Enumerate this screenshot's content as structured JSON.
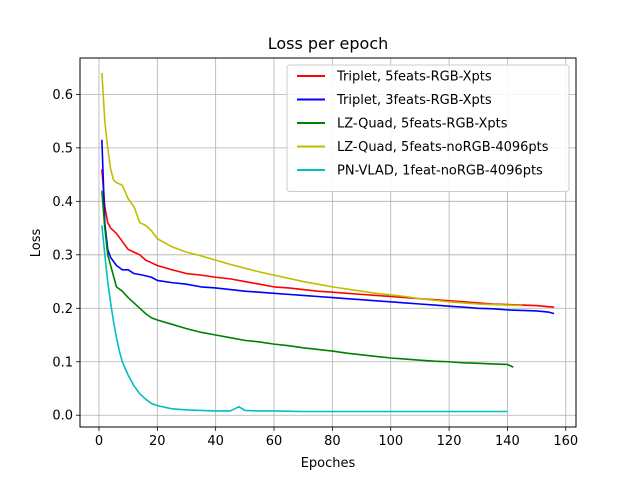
{
  "chart_data": {
    "type": "line",
    "title": "Loss per epoch",
    "xlabel": "Epoches",
    "ylabel": "Loss",
    "xlim": [
      -6.5,
      163.5
    ],
    "ylim": [
      -0.022,
      0.668
    ],
    "xticks": [
      0,
      20,
      40,
      60,
      80,
      100,
      120,
      140,
      160
    ],
    "yticks": [
      0.0,
      0.1,
      0.2,
      0.3,
      0.4,
      0.5,
      0.6
    ],
    "ytick_labels": [
      "0.0",
      "0.1",
      "0.2",
      "0.3",
      "0.4",
      "0.5",
      "0.6"
    ],
    "grid": true,
    "legend_position": "top-right",
    "series": [
      {
        "name": "Triplet, 5feats-RGB-Xpts",
        "color": "#ff0000",
        "points": [
          [
            1,
            0.46
          ],
          [
            2,
            0.39
          ],
          [
            3,
            0.36
          ],
          [
            4,
            0.35
          ],
          [
            6,
            0.34
          ],
          [
            8,
            0.325
          ],
          [
            10,
            0.31
          ],
          [
            12,
            0.305
          ],
          [
            14,
            0.3
          ],
          [
            16,
            0.29
          ],
          [
            18,
            0.285
          ],
          [
            20,
            0.28
          ],
          [
            25,
            0.272
          ],
          [
            30,
            0.265
          ],
          [
            35,
            0.262
          ],
          [
            40,
            0.258
          ],
          [
            45,
            0.255
          ],
          [
            50,
            0.25
          ],
          [
            55,
            0.245
          ],
          [
            60,
            0.24
          ],
          [
            65,
            0.238
          ],
          [
            70,
            0.235
          ],
          [
            75,
            0.232
          ],
          [
            80,
            0.23
          ],
          [
            85,
            0.228
          ],
          [
            90,
            0.226
          ],
          [
            95,
            0.224
          ],
          [
            100,
            0.222
          ],
          [
            105,
            0.22
          ],
          [
            110,
            0.218
          ],
          [
            115,
            0.216
          ],
          [
            120,
            0.214
          ],
          [
            125,
            0.212
          ],
          [
            130,
            0.21
          ],
          [
            135,
            0.208
          ],
          [
            140,
            0.207
          ],
          [
            145,
            0.206
          ],
          [
            150,
            0.205
          ],
          [
            154,
            0.203
          ],
          [
            156,
            0.202
          ]
        ]
      },
      {
        "name": "Triplet, 3feats-RGB-Xpts",
        "color": "#0000ff",
        "points": [
          [
            1,
            0.515
          ],
          [
            2,
            0.36
          ],
          [
            3,
            0.31
          ],
          [
            4,
            0.295
          ],
          [
            6,
            0.28
          ],
          [
            8,
            0.272
          ],
          [
            10,
            0.272
          ],
          [
            12,
            0.265
          ],
          [
            15,
            0.262
          ],
          [
            18,
            0.258
          ],
          [
            20,
            0.252
          ],
          [
            25,
            0.248
          ],
          [
            30,
            0.245
          ],
          [
            35,
            0.24
          ],
          [
            40,
            0.238
          ],
          [
            45,
            0.235
          ],
          [
            50,
            0.232
          ],
          [
            55,
            0.23
          ],
          [
            60,
            0.228
          ],
          [
            65,
            0.226
          ],
          [
            70,
            0.224
          ],
          [
            75,
            0.222
          ],
          [
            80,
            0.22
          ],
          [
            85,
            0.218
          ],
          [
            90,
            0.216
          ],
          [
            95,
            0.214
          ],
          [
            100,
            0.212
          ],
          [
            105,
            0.21
          ],
          [
            110,
            0.208
          ],
          [
            115,
            0.206
          ],
          [
            120,
            0.204
          ],
          [
            125,
            0.202
          ],
          [
            130,
            0.2
          ],
          [
            135,
            0.199
          ],
          [
            140,
            0.197
          ],
          [
            145,
            0.196
          ],
          [
            150,
            0.195
          ],
          [
            154,
            0.193
          ],
          [
            156,
            0.19
          ]
        ]
      },
      {
        "name": "LZ-Quad, 5feats-RGB-Xpts",
        "color": "#008000",
        "points": [
          [
            1,
            0.42
          ],
          [
            2,
            0.35
          ],
          [
            3,
            0.3
          ],
          [
            4,
            0.28
          ],
          [
            5,
            0.26
          ],
          [
            6,
            0.24
          ],
          [
            8,
            0.232
          ],
          [
            10,
            0.22
          ],
          [
            12,
            0.21
          ],
          [
            14,
            0.2
          ],
          [
            16,
            0.19
          ],
          [
            18,
            0.182
          ],
          [
            20,
            0.178
          ],
          [
            25,
            0.17
          ],
          [
            30,
            0.162
          ],
          [
            35,
            0.155
          ],
          [
            40,
            0.15
          ],
          [
            45,
            0.145
          ],
          [
            50,
            0.14
          ],
          [
            55,
            0.137
          ],
          [
            60,
            0.133
          ],
          [
            65,
            0.13
          ],
          [
            70,
            0.126
          ],
          [
            75,
            0.123
          ],
          [
            80,
            0.12
          ],
          [
            85,
            0.116
          ],
          [
            90,
            0.113
          ],
          [
            95,
            0.11
          ],
          [
            100,
            0.107
          ],
          [
            105,
            0.105
          ],
          [
            110,
            0.103
          ],
          [
            115,
            0.101
          ],
          [
            120,
            0.1
          ],
          [
            125,
            0.098
          ],
          [
            130,
            0.097
          ],
          [
            135,
            0.096
          ],
          [
            140,
            0.095
          ],
          [
            142,
            0.09
          ]
        ]
      },
      {
        "name": "LZ-Quad, 5feats-noRGB-4096pts",
        "color": "#bfbf00",
        "points": [
          [
            1,
            0.64
          ],
          [
            2,
            0.55
          ],
          [
            3,
            0.5
          ],
          [
            4,
            0.46
          ],
          [
            5,
            0.44
          ],
          [
            6,
            0.435
          ],
          [
            8,
            0.43
          ],
          [
            10,
            0.405
          ],
          [
            12,
            0.39
          ],
          [
            14,
            0.36
          ],
          [
            16,
            0.355
          ],
          [
            18,
            0.345
          ],
          [
            20,
            0.33
          ],
          [
            25,
            0.315
          ],
          [
            30,
            0.305
          ],
          [
            35,
            0.298
          ],
          [
            40,
            0.29
          ],
          [
            45,
            0.282
          ],
          [
            50,
            0.275
          ],
          [
            55,
            0.268
          ],
          [
            60,
            0.262
          ],
          [
            65,
            0.256
          ],
          [
            70,
            0.25
          ],
          [
            75,
            0.245
          ],
          [
            80,
            0.24
          ],
          [
            85,
            0.236
          ],
          [
            90,
            0.232
          ],
          [
            95,
            0.228
          ],
          [
            100,
            0.225
          ],
          [
            105,
            0.222
          ],
          [
            110,
            0.218
          ],
          [
            115,
            0.215
          ],
          [
            120,
            0.212
          ],
          [
            125,
            0.21
          ],
          [
            130,
            0.208
          ],
          [
            135,
            0.207
          ],
          [
            140,
            0.206
          ],
          [
            145,
            0.205
          ]
        ]
      },
      {
        "name": "PN-VLAD, 1feat-noRGB-4096pts",
        "color": "#00bfbf",
        "points": [
          [
            1,
            0.355
          ],
          [
            2,
            0.3
          ],
          [
            3,
            0.25
          ],
          [
            4,
            0.21
          ],
          [
            5,
            0.175
          ],
          [
            6,
            0.145
          ],
          [
            7,
            0.12
          ],
          [
            8,
            0.1
          ],
          [
            10,
            0.075
          ],
          [
            12,
            0.055
          ],
          [
            14,
            0.04
          ],
          [
            16,
            0.03
          ],
          [
            18,
            0.022
          ],
          [
            20,
            0.018
          ],
          [
            25,
            0.012
          ],
          [
            30,
            0.01
          ],
          [
            35,
            0.009
          ],
          [
            40,
            0.008
          ],
          [
            45,
            0.008
          ],
          [
            48,
            0.016
          ],
          [
            50,
            0.009
          ],
          [
            55,
            0.008
          ],
          [
            60,
            0.008
          ],
          [
            70,
            0.007
          ],
          [
            80,
            0.007
          ],
          [
            90,
            0.007
          ],
          [
            100,
            0.007
          ],
          [
            110,
            0.007
          ],
          [
            120,
            0.007
          ],
          [
            130,
            0.007
          ],
          [
            140,
            0.007
          ]
        ]
      }
    ]
  }
}
